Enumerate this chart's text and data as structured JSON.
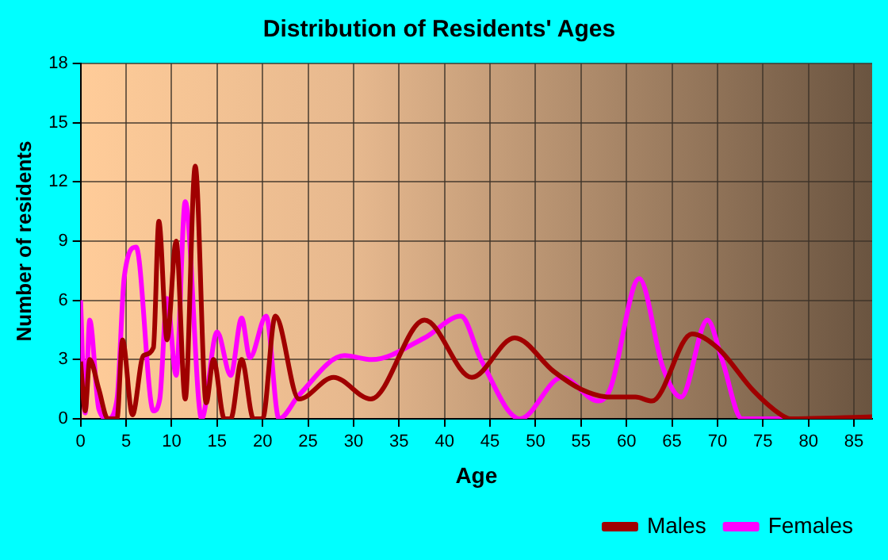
{
  "chart_data": {
    "type": "line",
    "title": "Distribution of Residents' Ages",
    "xlabel": "Age",
    "ylabel": "Number of residents",
    "xlim": [
      0,
      87
    ],
    "xticks": [
      0,
      5,
      10,
      15,
      20,
      25,
      30,
      35,
      40,
      45,
      50,
      55,
      60,
      65,
      70,
      75,
      80,
      85
    ],
    "ylim": [
      0,
      18
    ],
    "yticks": [
      0,
      3,
      6,
      9,
      12,
      15,
      18
    ],
    "grid": true,
    "legend": "bottom right",
    "marker": "none",
    "line_style": "solid",
    "series": [
      {
        "name": "Males",
        "color": "#a00000",
        "x": [
          0,
          0.5,
          1,
          2,
          3,
          4,
          4.6,
          5.7,
          6.9,
          8,
          8.6,
          9.5,
          10.5,
          11.5,
          12.6,
          13.8,
          14.6,
          15.8,
          16.5,
          17.7,
          19,
          20,
          21.4,
          24,
          27.8,
          31.9,
          37.8,
          43,
          47.7,
          52,
          55,
          58.2,
          61,
          62.8,
          67.2,
          70,
          74,
          77,
          78,
          87
        ],
        "values": [
          2.9,
          0.4,
          3,
          1.5,
          0,
          0,
          4,
          0.2,
          3.2,
          3.6,
          10,
          4,
          9,
          1,
          12.8,
          0.8,
          3,
          0,
          0,
          3,
          0,
          0,
          5.2,
          1,
          2.1,
          1,
          5,
          2.1,
          4.1,
          2.4,
          1.5,
          1.1,
          1.1,
          0.9,
          4.3,
          3.6,
          1.4,
          0.2,
          0,
          0.1
        ]
      },
      {
        "name": "Females",
        "color": "#ff00ff",
        "x": [
          0,
          0.5,
          1,
          2,
          3,
          4,
          4.8,
          6.1,
          8,
          8.7,
          9.5,
          10.5,
          11.5,
          13.3,
          15,
          16.5,
          17.7,
          18.6,
          20.4,
          21.8,
          24,
          29,
          32,
          37.8,
          41.8,
          44,
          48.3,
          52.9,
          56.9,
          58.2,
          61.4,
          64,
          66,
          68.9,
          70.5,
          72.7,
          80,
          87
        ],
        "values": [
          6,
          0.3,
          5,
          0.5,
          0,
          1,
          7.2,
          8.7,
          0.4,
          1,
          6.1,
          2.2,
          11,
          0,
          4.4,
          2.2,
          5.1,
          3.1,
          5.2,
          0,
          1.2,
          3.2,
          3,
          4.1,
          5.2,
          3,
          0,
          2.1,
          0.9,
          1.5,
          7.1,
          2.6,
          1.1,
          5,
          3,
          0,
          0,
          0
        ]
      }
    ]
  }
}
